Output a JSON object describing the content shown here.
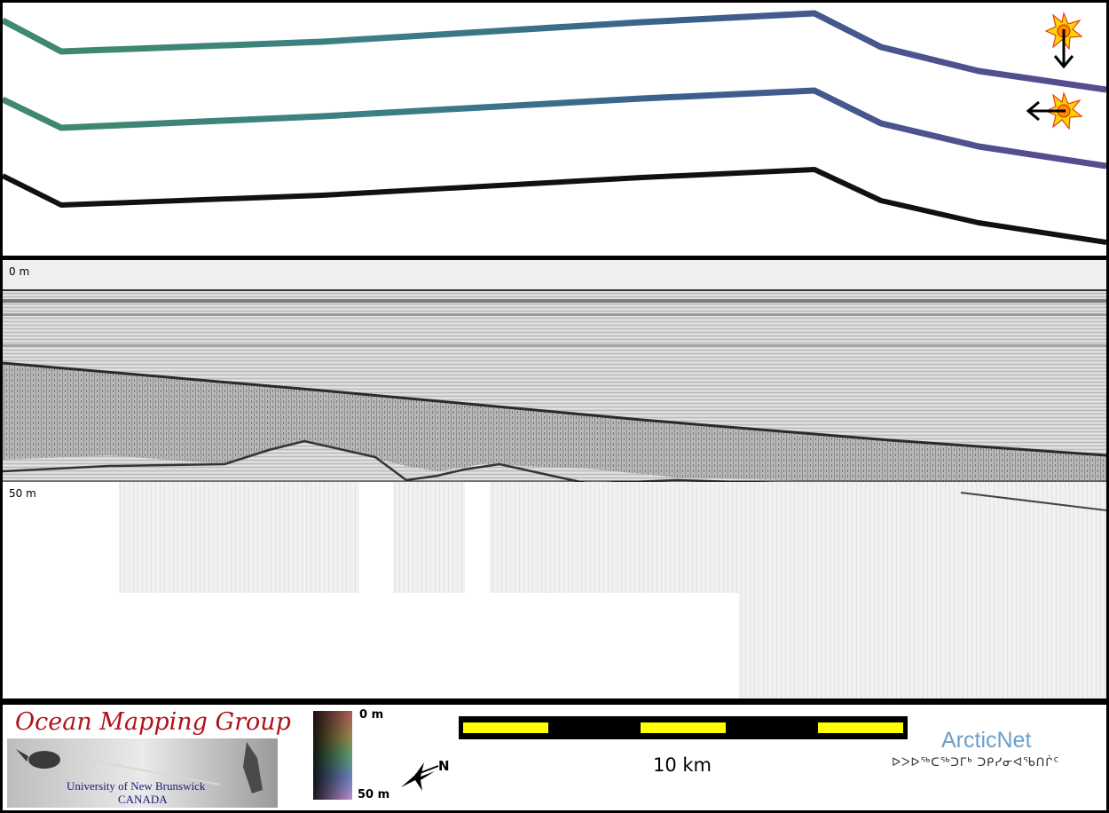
{
  "profile": {
    "depth_top_label": "0 m",
    "depth_bottom_label": "50 m"
  },
  "legend": {
    "top_label": "0 m",
    "bottom_label": "50 m"
  },
  "scale_bar": {
    "label": "10 km",
    "color_fill": "#ffff00",
    "color_alt": "#000000"
  },
  "north_arrow": {
    "label": "N"
  },
  "ogp": {
    "title": "Ocean Mapping Group",
    "line1": "University of New Brunswick",
    "line2": "CANADA",
    "title_color": "#b0121a"
  },
  "arcticnet": {
    "name": "ArcticNet",
    "syllabics": "ᐅᐳᐅᖅᑕᖅᑐᒥᒃ ᑐᑭᓯᓂᐊᖃᑎᒌᑦ",
    "color": "#6d9fc9"
  },
  "icons": {
    "sun_down": "sun-icon",
    "sun_left": "sun-icon",
    "arrow_down": "arrow-down-icon",
    "arrow_left": "arrow-left-icon"
  }
}
